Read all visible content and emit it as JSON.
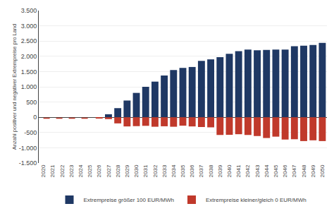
{
  "chart_data": {
    "type": "bar",
    "categories": [
      "2020",
      "2021",
      "2022",
      "2023",
      "2024",
      "2025",
      "2026",
      "2027",
      "2028",
      "2029",
      "2030",
      "2031",
      "2032",
      "2033",
      "2034",
      "2035",
      "2036",
      "2037",
      "2038",
      "2039",
      "2040",
      "2041",
      "2042",
      "2043",
      "2044",
      "2045",
      "2046",
      "2047",
      "2048",
      "2049",
      "2050"
    ],
    "series": [
      {
        "name": "Extrempreise größer 100 EUR/MWh",
        "color": "#1f3864",
        "values": [
          0,
          0,
          0,
          0,
          0,
          0,
          0,
          100,
          300,
          550,
          800,
          1000,
          1170,
          1370,
          1550,
          1620,
          1650,
          1850,
          1900,
          1970,
          2080,
          2170,
          2220,
          2200,
          2210,
          2220,
          2220,
          2330,
          2350,
          2370,
          2440
        ]
      },
      {
        "name": "Extrempreise kleiner/gleich 0 EUR/MWh",
        "color": "#c0392b",
        "values": [
          0,
          0,
          0,
          0,
          0,
          0,
          -30,
          -60,
          -200,
          -300,
          -290,
          -280,
          -310,
          -295,
          -310,
          -275,
          -300,
          -320,
          -330,
          -580,
          -575,
          -555,
          -580,
          -615,
          -680,
          -635,
          -730,
          -720,
          -780,
          -755,
          -780
        ]
      },
      {
        "type": "line",
        "line_style": "dashed",
        "color": "#c0392b",
        "values": [
          -30,
          -30,
          -30,
          -30,
          -30,
          -30,
          null,
          null,
          null,
          null,
          null,
          null,
          null,
          null,
          null,
          null,
          null,
          null,
          null,
          null,
          null,
          null,
          null,
          null,
          null,
          null,
          null,
          null,
          null,
          null,
          null
        ]
      }
    ],
    "ylabel": "Anzahl positiver und negativer Extrempreise pro Land",
    "ylim": [
      -1500,
      3500
    ],
    "yticks": [
      {
        "value": -1500,
        "label": "-1.500"
      },
      {
        "value": -1000,
        "label": "-1.000"
      },
      -500,
      0,
      500,
      {
        "value": 1000,
        "label": "1.000"
      },
      {
        "value": 1500,
        "label": "1.500"
      },
      {
        "value": 2000,
        "label": "2.000"
      },
      {
        "value": 2500,
        "label": "2.500"
      },
      {
        "value": 3000,
        "label": "3.000"
      },
      {
        "value": 3500,
        "label": "3.500"
      }
    ],
    "grid": true,
    "legend": "bottom"
  }
}
